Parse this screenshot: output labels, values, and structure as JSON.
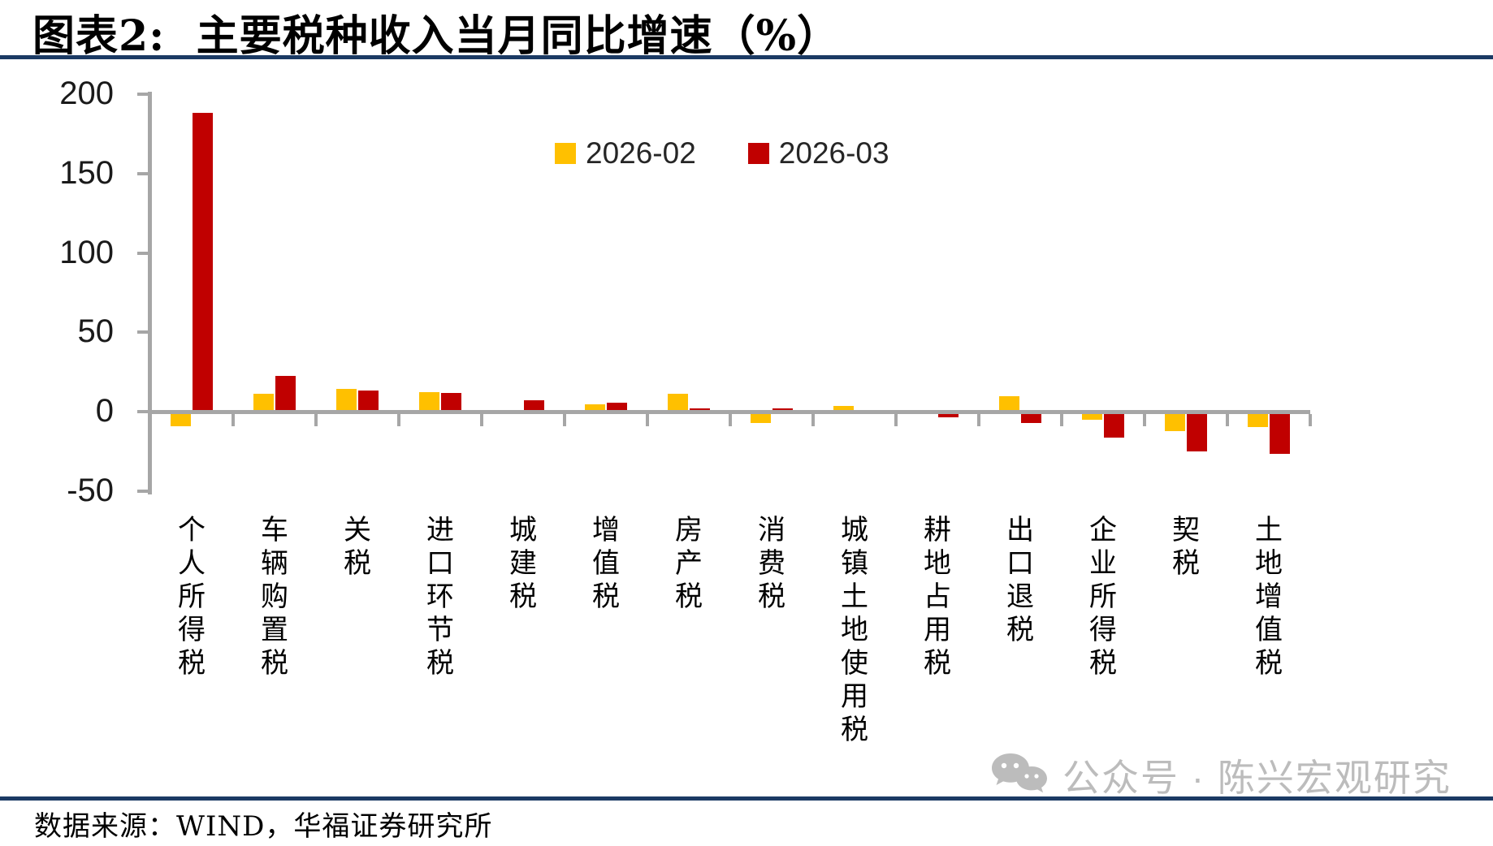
{
  "title": "图表2:  主要税种收入当月同比增速（%）",
  "legend": {
    "items": [
      {
        "label": "2026-02",
        "color": "#FFC000"
      },
      {
        "label": "2026-03",
        "color": "#C00000"
      }
    ]
  },
  "chart_data": {
    "type": "bar",
    "title": "主要税种收入当月同比增速（%）",
    "categories": [
      "个人所得税",
      "车辆购置税",
      "关税",
      "进口环节税",
      "城建税",
      "增值税",
      "房产税",
      "消费税",
      "城镇土地使用税",
      "耕地占用税",
      "出口退税",
      "企业所得税",
      "契税",
      "土地增值税"
    ],
    "series": [
      {
        "name": "2026-02",
        "color": "#FFC000",
        "values": [
          -7.5,
          11.3,
          14.3,
          12.5,
          0.8,
          4.6,
          11.2,
          -5.6,
          3.6,
          0,
          9.7,
          -3.7,
          -10.7,
          -8.2
        ]
      },
      {
        "name": "2026-03",
        "color": "#C00000",
        "values": [
          188.3,
          22.4,
          13.3,
          12.0,
          7.4,
          5.6,
          2.0,
          1.8,
          1.0,
          -1.8,
          -5.6,
          -15.0,
          -23.5,
          -25.0
        ]
      }
    ],
    "xlabel": "",
    "ylabel": "",
    "ylim": [
      -50,
      200
    ],
    "yticks": [
      200,
      150,
      100,
      50,
      0,
      -50
    ],
    "grid": "off",
    "legend_position": "top-center",
    "axis_color": "#a6a6a6"
  },
  "watermark": {
    "icon": "wechat-bubbles-icon",
    "text": "公众号 · 陈兴宏观研究",
    "color": "#bcbcbc"
  },
  "footer": {
    "source": "数据来源：WIND，华福证券研究所"
  },
  "colors": {
    "accent_rule": "#1b3a64",
    "series_2026_02": "#FFC000",
    "series_2026_03": "#C00000",
    "axis": "#a6a6a6"
  }
}
